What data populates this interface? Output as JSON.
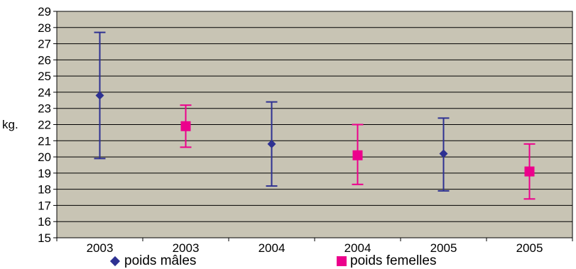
{
  "chart_data": {
    "type": "scatter",
    "title": "",
    "xlabel": "",
    "ylabel": "kg.",
    "ylim": [
      15,
      29
    ],
    "yticks": [
      15,
      16,
      17,
      18,
      19,
      20,
      21,
      22,
      23,
      24,
      25,
      26,
      27,
      28,
      29
    ],
    "categories": [
      "2003",
      "2003",
      "2004",
      "2004",
      "2005",
      "2005"
    ],
    "grid": true,
    "legend_position": "bottom",
    "series": [
      {
        "name": "poids mâles",
        "marker": "diamond",
        "color": "#2e3192",
        "points": [
          {
            "category_index": 0,
            "value": 23.8,
            "low": 19.9,
            "high": 27.7
          },
          {
            "category_index": 2,
            "value": 20.8,
            "low": 18.2,
            "high": 23.4
          },
          {
            "category_index": 4,
            "value": 20.2,
            "low": 17.9,
            "high": 22.4
          }
        ]
      },
      {
        "name": "poids femelles",
        "marker": "square",
        "color": "#ec008c",
        "points": [
          {
            "category_index": 1,
            "value": 21.9,
            "low": 20.6,
            "high": 23.2
          },
          {
            "category_index": 3,
            "value": 20.1,
            "low": 18.3,
            "high": 22.0
          },
          {
            "category_index": 5,
            "value": 19.1,
            "low": 17.4,
            "high": 20.8
          }
        ]
      }
    ],
    "colors": {
      "plot_background": "#c8c4b4",
      "gridline": "#000000"
    }
  }
}
